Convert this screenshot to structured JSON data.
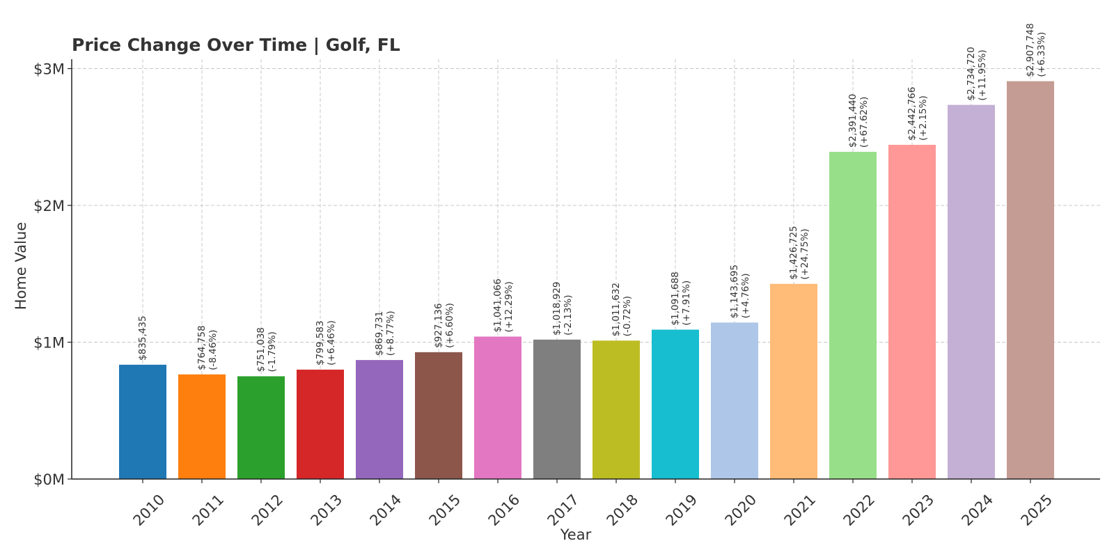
{
  "chart_data": {
    "type": "bar",
    "title": "Price Change Over Time | Golf, FL",
    "xlabel": "Year",
    "ylabel": "Home Value",
    "categories": [
      "2010",
      "2011",
      "2012",
      "2013",
      "2014",
      "2015",
      "2016",
      "2017",
      "2018",
      "2019",
      "2020",
      "2021",
      "2022",
      "2023",
      "2024",
      "2025"
    ],
    "values": [
      835435,
      764758,
      751038,
      799583,
      869731,
      927136,
      1041066,
      1018929,
      1011632,
      1091688,
      1143695,
      1426725,
      2391440,
      2442766,
      2734720,
      2907748
    ],
    "value_labels": [
      "$835,435",
      "$764,758",
      "$751,038",
      "$799,583",
      "$869,731",
      "$927,136",
      "$1,041,066",
      "$1,018,929",
      "$1,011,632",
      "$1,091,688",
      "$1,143,695",
      "$1,426,725",
      "$2,391,440",
      "$2,442,766",
      "$2,734,720",
      "$2,907,748"
    ],
    "change_labels": [
      "",
      "(-8.46%)",
      "(-1.79%)",
      "(+6.46%)",
      "(+8.77%)",
      "(+6.60%)",
      "(+12.29%)",
      "(-2.13%)",
      "(-0.72%)",
      "(+7.91%)",
      "(+4.76%)",
      "(+24.75%)",
      "(+67.62%)",
      "(+2.15%)",
      "(+11.95%)",
      "(+6.33%)"
    ],
    "colors": [
      "#1f77b4",
      "#ff7f0e",
      "#2ca02c",
      "#d62728",
      "#9467bd",
      "#8c564b",
      "#e377c2",
      "#7f7f7f",
      "#bcbd22",
      "#17becf",
      "#aec7e8",
      "#ffbb78",
      "#98df8a",
      "#ff9896",
      "#c5b0d5",
      "#c49c94"
    ],
    "yticks": [
      0,
      1000000,
      2000000,
      3000000
    ],
    "ytick_labels": [
      "$0M",
      "$1M",
      "$2M",
      "$3M"
    ],
    "ylim": [
      0,
      3000000
    ],
    "grid": true
  }
}
